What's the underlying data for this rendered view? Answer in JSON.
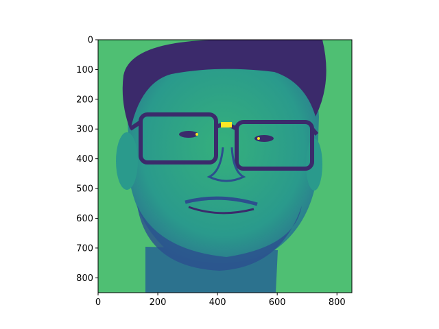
{
  "image_plot": {
    "colormap": "viridis",
    "subject": "portrait-face-with-glasses",
    "colors": {
      "background": "#4fbf73",
      "face_mid": "#2a9a8c",
      "face_light": "#35b07c",
      "hair_dark": "#3b2a6b",
      "shadow": "#2c4f8e",
      "highlight": "#fde725"
    }
  },
  "chart_data": {
    "type": "heatmap",
    "title": "",
    "xlabel": "",
    "ylabel": "",
    "xlim": [
      0,
      850
    ],
    "ylim": [
      850,
      0
    ],
    "x_ticks": [
      "0",
      "200",
      "400",
      "600",
      "800"
    ],
    "y_ticks": [
      "0",
      "100",
      "200",
      "300",
      "400",
      "500",
      "600",
      "700",
      "800"
    ],
    "grid": false
  }
}
